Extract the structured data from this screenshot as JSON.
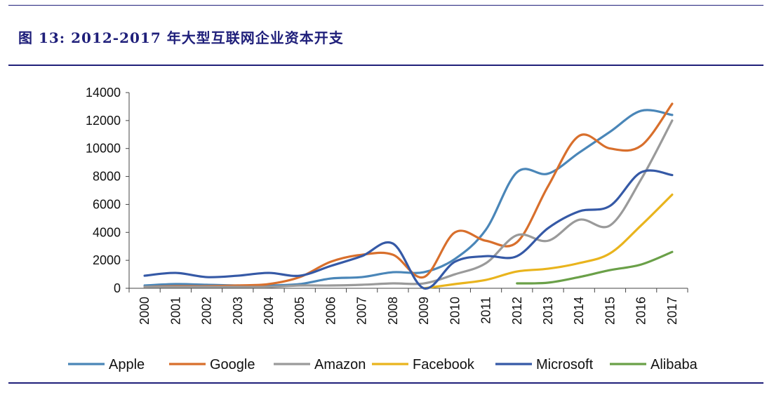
{
  "title": "图 13:  2012-2017 年大型互联网企业资本开支",
  "chart_data": {
    "type": "line",
    "title": "",
    "xlabel": "",
    "ylabel": "",
    "ylim": [
      0,
      14000
    ],
    "yticks": [
      0,
      2000,
      4000,
      6000,
      8000,
      10000,
      12000,
      14000
    ],
    "categories": [
      "2000",
      "2001",
      "2002",
      "2003",
      "2004",
      "2005",
      "2006",
      "2007",
      "2008",
      "2009",
      "2010",
      "2011",
      "2012",
      "2013",
      "2014",
      "2015",
      "2016",
      "2017"
    ],
    "grid": false,
    "legend_position": "bottom",
    "series": [
      {
        "name": "Apple",
        "color": "#4a86b8",
        "values": [
          200,
          300,
          250,
          200,
          200,
          300,
          700,
          800,
          1150,
          1150,
          2100,
          4200,
          8300,
          8200,
          9700,
          11200,
          12700,
          12400
        ]
      },
      {
        "name": "Google",
        "color": "#d86f2c",
        "values": [
          100,
          150,
          150,
          200,
          300,
          800,
          1900,
          2400,
          2400,
          800,
          4000,
          3400,
          3300,
          7300,
          10900,
          10000,
          10200,
          13200
        ]
      },
      {
        "name": "Amazon",
        "color": "#9a9a9a",
        "values": [
          100,
          100,
          100,
          100,
          100,
          200,
          200,
          250,
          350,
          350,
          1000,
          1800,
          3800,
          3400,
          4900,
          4500,
          7800,
          12000
        ]
      },
      {
        "name": "Facebook",
        "color": "#e9b41d",
        "values": [
          null,
          null,
          null,
          null,
          null,
          null,
          null,
          null,
          null,
          0,
          300,
          600,
          1200,
          1400,
          1800,
          2500,
          4500,
          6700
        ]
      },
      {
        "name": "Microsoft",
        "color": "#3559a6",
        "values": [
          900,
          1100,
          800,
          900,
          1100,
          900,
          1600,
          2300,
          3200,
          0,
          1900,
          2300,
          2300,
          4300,
          5500,
          5900,
          8300,
          8100
        ]
      },
      {
        "name": "Alibaba",
        "color": "#6aa048",
        "values": [
          null,
          null,
          null,
          null,
          null,
          null,
          null,
          null,
          null,
          null,
          null,
          null,
          350,
          400,
          800,
          1300,
          1700,
          2600
        ]
      }
    ]
  }
}
